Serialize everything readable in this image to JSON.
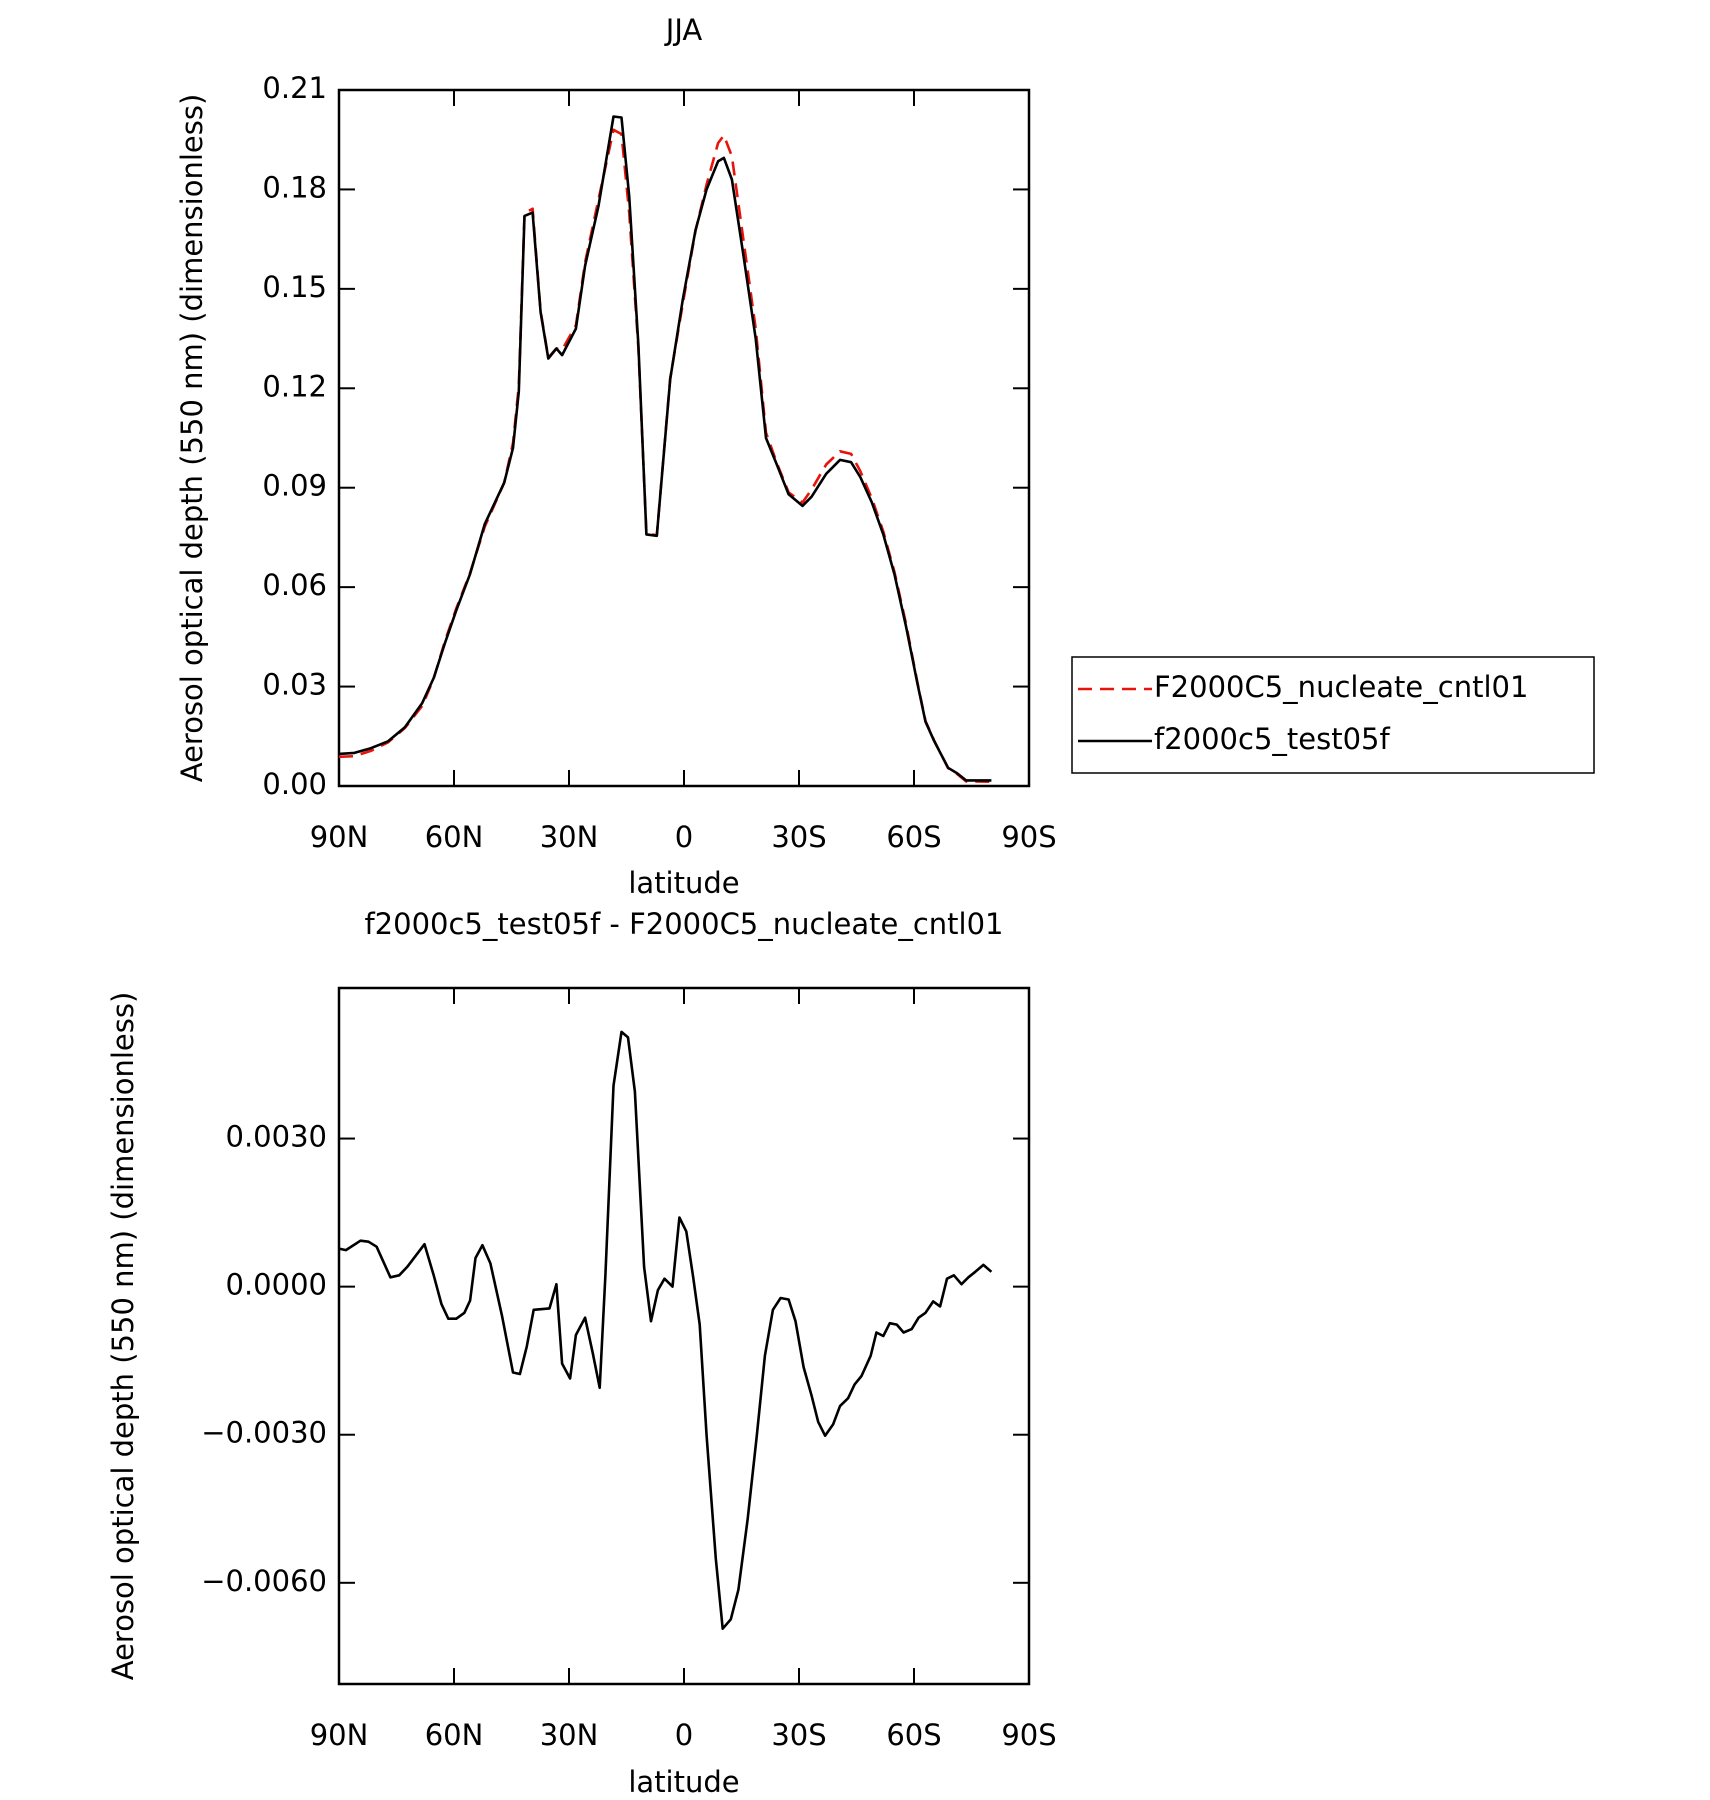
{
  "chart_data": [
    {
      "type": "line",
      "title": "JJA",
      "x_label": "latitude",
      "y_label": "Aerosol optical depth (550 nm) (dimensionless)",
      "x": [
        90,
        86,
        81.7,
        77.2,
        72.8,
        68.3,
        65.3,
        62.4,
        59.4,
        55.8,
        52,
        46.9,
        44.6,
        43.1,
        41.6,
        39.5,
        37.4,
        35.4,
        33.3,
        31.8,
        28.2,
        25.8,
        22.3,
        18.4,
        16.3,
        14.3,
        11.9,
        9.8,
        7.1,
        3.6,
        0.3,
        -3,
        -5.9,
        -8.9,
        -10.4,
        -12.5,
        -15.4,
        -18.7,
        -21.4,
        -24.3,
        -27.3,
        -30.9,
        -33.3,
        -37.1,
        -40.7,
        -43.6,
        -46,
        -49,
        -52,
        -54.9,
        -57.9,
        -60.9,
        -63,
        -65.3,
        -68.9,
        -71.3,
        -73.6,
        -80.2
      ],
      "series": [
        {
          "name": "F2000C5_nucleate_cntl01",
          "color": "#e8140c",
          "dash": true,
          "values": [
            0.0088,
            0.009,
            0.0106,
            0.0132,
            0.0175,
            0.0242,
            0.0324,
            0.0436,
            0.0536,
            0.0643,
            0.0782,
            0.0915,
            0.1035,
            0.1207,
            0.1728,
            0.1742,
            0.1433,
            0.1293,
            0.132,
            0.1316,
            0.139,
            0.158,
            0.177,
            0.198,
            0.1967,
            0.173,
            0.132,
            0.0763,
            0.0756,
            0.123,
            0.1457,
            0.1675,
            0.1815,
            0.194,
            0.1963,
            0.19,
            0.1657,
            0.138,
            0.1066,
            0.0972,
            0.0886,
            0.0855,
            0.0895,
            0.097,
            0.101,
            0.1002,
            0.095,
            0.0868,
            0.0768,
            0.0645,
            0.049,
            0.0311,
            0.0196,
            0.0136,
            0.0054,
            0.0036,
            0.0014,
            0.0013
          ]
        },
        {
          "name": "f2000c5_test05f",
          "color": "#000000",
          "dash": false,
          "values": [
            0.0097,
            0.01,
            0.0114,
            0.0135,
            0.0177,
            0.025,
            0.0326,
            0.043,
            0.053,
            0.064,
            0.079,
            0.0915,
            0.102,
            0.119,
            0.172,
            0.173,
            0.143,
            0.129,
            0.132,
            0.13,
            0.138,
            0.157,
            0.175,
            0.202,
            0.2017,
            0.178,
            0.133,
            0.0759,
            0.0755,
            0.1227,
            0.147,
            0.1677,
            0.18,
            0.1885,
            0.1895,
            0.183,
            0.161,
            0.135,
            0.105,
            0.0967,
            0.088,
            0.0845,
            0.0873,
            0.0942,
            0.0984,
            0.0977,
            0.0932,
            0.0856,
            0.0759,
            0.0638,
            0.0482,
            0.0308,
            0.0194,
            0.0135,
            0.0055,
            0.0038,
            0.0017,
            0.0017
          ]
        }
      ],
      "xlim": [
        90,
        -90
      ],
      "xticks": [
        {
          "value": 90,
          "label": "90N"
        },
        {
          "value": 60,
          "label": "60N"
        },
        {
          "value": 30,
          "label": "30N"
        },
        0,
        {
          "value": -30,
          "label": "30S"
        },
        {
          "value": -60,
          "label": "60S"
        },
        {
          "value": -90,
          "label": "90S"
        }
      ],
      "ylim": [
        0,
        0.21
      ],
      "yticks": [
        {
          "value": 0,
          "label": "0.00"
        },
        0.03,
        0.06,
        0.09,
        0.12,
        0.15,
        0.18,
        0.21
      ],
      "grid": false,
      "legend": "right"
    },
    {
      "type": "line",
      "title": "f2000c5_test05f - F2000C5_nucleate_cntl01",
      "x_label": "latitude",
      "y_label": "Aerosol optical depth (550 nm) (dimensionless)",
      "x": [
        90,
        88.2,
        84.4,
        82.3,
        80.2,
        76.6,
        74.3,
        72.2,
        67.7,
        65.3,
        63.3,
        61.5,
        59.4,
        57.3,
        55.8,
        54.4,
        52.6,
        50.5,
        47.5,
        44.6,
        42.8,
        41,
        39.2,
        35.1,
        33.3,
        31.8,
        29.7,
        28.2,
        25.8,
        23.8,
        22,
        20.5,
        18.4,
        16.3,
        14.6,
        12.8,
        10.4,
        8.6,
        6.8,
        5.1,
        3,
        1.2,
        -0.6,
        -2.4,
        -4.1,
        -5.9,
        -8.3,
        -10.1,
        -12.2,
        -14.2,
        -16.6,
        -19,
        -21.1,
        -23.2,
        -25.2,
        -27.3,
        -29.1,
        -31.2,
        -33.3,
        -35,
        -36.8,
        -38.9,
        -40.7,
        -42.8,
        -44.5,
        -46.3,
        -48.7,
        -50.2,
        -52,
        -53.7,
        -55.5,
        -57.3,
        -59.4,
        -61.2,
        -63,
        -65,
        -66.8,
        -68.6,
        -70.4,
        -72.4,
        -74.2,
        -76,
        -78.1,
        -80.2
      ],
      "values": [
        0.00077,
        0.00074,
        0.00093,
        0.00091,
        0.00081,
        0.00019,
        0.00023,
        0.0004,
        0.00086,
        0.00023,
        -0.00035,
        -0.00065,
        -0.00065,
        -0.00053,
        -0.00028,
        0.00058,
        0.00084,
        0.00047,
        -0.00058,
        -0.00174,
        -0.00177,
        -0.00121,
        -0.00047,
        -0.00044,
        5e-05,
        -0.00156,
        -0.00186,
        -0.00098,
        -0.00063,
        -0.00135,
        -0.00205,
        0.00023,
        0.00407,
        0.00516,
        0.00505,
        0.00395,
        0.0004,
        -0.0007,
        -7e-05,
        0.00016,
        0,
        0.0014,
        0.00112,
        0.00019,
        -0.00077,
        -0.00302,
        -0.00551,
        -0.00693,
        -0.00674,
        -0.00614,
        -0.00472,
        -0.00302,
        -0.0014,
        -0.00047,
        -0.00023,
        -0.00026,
        -0.0007,
        -0.00163,
        -0.00221,
        -0.00274,
        -0.00302,
        -0.00279,
        -0.00242,
        -0.00226,
        -0.00198,
        -0.00181,
        -0.0014,
        -0.00093,
        -0.001,
        -0.00074,
        -0.00077,
        -0.00093,
        -0.00086,
        -0.00063,
        -0.00053,
        -0.0003,
        -0.0004,
        0.00016,
        0.00023,
        5e-05,
        0.00019,
        0.0003,
        0.00044,
        0.0003
      ],
      "color": "#000000",
      "xlim": [
        90,
        -90
      ],
      "xticks": [
        {
          "value": 90,
          "label": "90N"
        },
        {
          "value": 60,
          "label": "60N"
        },
        {
          "value": 30,
          "label": "30N"
        },
        0,
        {
          "value": -30,
          "label": "30S"
        },
        {
          "value": -60,
          "label": "60S"
        },
        {
          "value": -90,
          "label": "90S"
        }
      ],
      "ylim": [
        -0.00805,
        0.00605
      ],
      "yticks": [
        {
          "value": -0.006,
          "label": "−0.0060"
        },
        {
          "value": -0.003,
          "label": "−0.0030"
        },
        {
          "value": 0,
          "label": "0.0000"
        },
        {
          "value": 0.003,
          "label": "0.0030"
        }
      ],
      "grid": false
    }
  ]
}
